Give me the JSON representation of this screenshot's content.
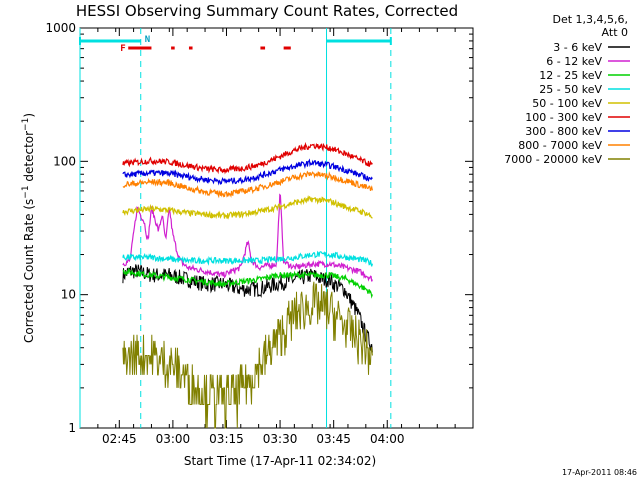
{
  "chart_data": {
    "type": "line",
    "title": "HESSI Observing Summary Count Rates, Corrected",
    "xlabel": "Start Time (17-Apr-11 02:34:02)",
    "ylabel": "Corrected Count Rate (s⁻¹ detector⁻¹)",
    "ylabel_parts": {
      "main": "Corrected Count Rate (s",
      "sup1": "−1",
      "mid": " detector",
      "sup2": "−1",
      "end": ")"
    },
    "yscale": "log",
    "ylim": [
      1,
      1000
    ],
    "xlim_minutes": [
      0,
      110
    ],
    "x_tick_labels": [
      "02:45",
      "03:00",
      "03:15",
      "03:30",
      "03:45",
      "04:00"
    ],
    "x_tick_minutes": [
      11,
      26,
      41,
      56,
      71,
      86
    ],
    "y_tick_labels": [
      "1",
      "10",
      "100",
      "1000"
    ],
    "y_tick_values": [
      1,
      10,
      100,
      1000
    ],
    "legend_header": [
      "Det 1,3,4,5,6,",
      "Att 0"
    ],
    "legend_position": "right, outside plot",
    "flags": {
      "F_label": "F",
      "N_label": "N",
      "F_segments_minutes": [
        [
          13.5,
          20
        ],
        [
          25.5,
          26.5
        ],
        [
          30.5,
          31.5
        ],
        [
          50.5,
          51.8
        ],
        [
          57,
          59
        ]
      ],
      "night_lines_minutes": [
        0,
        69
      ],
      "saa_lines_minutes": [
        17,
        87
      ]
    },
    "series": [
      {
        "name": "3 - 6 keV",
        "color": "#000000",
        "x": [
          12,
          14,
          16,
          20,
          25,
          30,
          35,
          40,
          45,
          50,
          55,
          60,
          65,
          68,
          70,
          71,
          74,
          78,
          80,
          81,
          82
        ],
        "y": [
          14,
          15,
          15,
          14,
          14,
          13,
          12,
          12,
          11,
          11,
          12,
          13,
          14,
          13,
          13,
          12,
          11,
          7,
          5,
          4.5,
          4
        ]
      },
      {
        "name": "6 - 12 keV",
        "color": "#d020d0",
        "x": [
          12,
          14,
          16,
          18,
          19,
          20,
          22,
          23,
          24,
          25,
          26,
          27,
          28,
          30,
          35,
          40,
          45,
          47,
          48,
          50,
          55,
          56,
          57,
          58,
          60,
          65,
          70,
          74,
          78,
          80,
          82
        ],
        "y": [
          17,
          18,
          45,
          35,
          25,
          45,
          30,
          40,
          25,
          45,
          28,
          22,
          18,
          16,
          15,
          14,
          16,
          25,
          18,
          16,
          17,
          60,
          18,
          17,
          16,
          17,
          17,
          16,
          15,
          14,
          13
        ]
      },
      {
        "name": "12 - 25 keV",
        "color": "#00d000",
        "x": [
          12,
          20,
          30,
          40,
          50,
          55,
          60,
          65,
          70,
          75,
          80,
          82
        ],
        "y": [
          15,
          14,
          13,
          12,
          13,
          14,
          14,
          14,
          14,
          13,
          11,
          10
        ]
      },
      {
        "name": "25 - 50 keV",
        "color": "#00e0e0",
        "x": [
          12,
          20,
          30,
          40,
          50,
          60,
          65,
          70,
          75,
          80,
          82
        ],
        "y": [
          19,
          19,
          18,
          18,
          18,
          19,
          20,
          20,
          19,
          18,
          17
        ]
      },
      {
        "name": "50 - 100 keV",
        "color": "#d0c000",
        "x": [
          12,
          20,
          25,
          30,
          35,
          40,
          45,
          50,
          55,
          60,
          65,
          70,
          75,
          80,
          82
        ],
        "y": [
          42,
          44,
          43,
          41,
          40,
          39,
          40,
          42,
          45,
          49,
          52,
          50,
          45,
          41,
          38
        ]
      },
      {
        "name": "100 - 300 keV",
        "color": "#e00000",
        "x": [
          12,
          15,
          20,
          25,
          30,
          35,
          40,
          45,
          50,
          55,
          60,
          65,
          70,
          75,
          80,
          82
        ],
        "y": [
          96,
          98,
          101,
          99,
          93,
          88,
          86,
          88,
          94,
          106,
          121,
          132,
          126,
          112,
          98,
          93
        ]
      },
      {
        "name": "300 - 800 keV",
        "color": "#0000e0",
        "x": [
          12,
          15,
          20,
          25,
          30,
          35,
          40,
          45,
          50,
          55,
          60,
          65,
          70,
          75,
          80,
          82
        ],
        "y": [
          79,
          80,
          82,
          81,
          77,
          73,
          71,
          72,
          77,
          85,
          92,
          98,
          93,
          85,
          76,
          72
        ]
      },
      {
        "name": "800 - 7000 keV",
        "color": "#ff8000",
        "x": [
          12,
          15,
          20,
          25,
          30,
          35,
          40,
          45,
          50,
          55,
          60,
          65,
          70,
          75,
          80,
          82
        ],
        "y": [
          67,
          68,
          70,
          69,
          63,
          59,
          57,
          59,
          63,
          69,
          76,
          81,
          77,
          71,
          64,
          61
        ]
      },
      {
        "name": "7000 - 20000 keV",
        "color": "#808000",
        "x": [
          12,
          15,
          20,
          25,
          30,
          35,
          40,
          45,
          50,
          55,
          60,
          65,
          70,
          75,
          80,
          82
        ],
        "y": [
          3.2,
          3.5,
          3.4,
          3,
          2.3,
          1.8,
          1.6,
          1.9,
          2.8,
          4.5,
          7,
          8.5,
          7.5,
          5.5,
          4,
          3
        ]
      }
    ]
  },
  "footer_timestamp": "17-Apr-2011 08:46"
}
